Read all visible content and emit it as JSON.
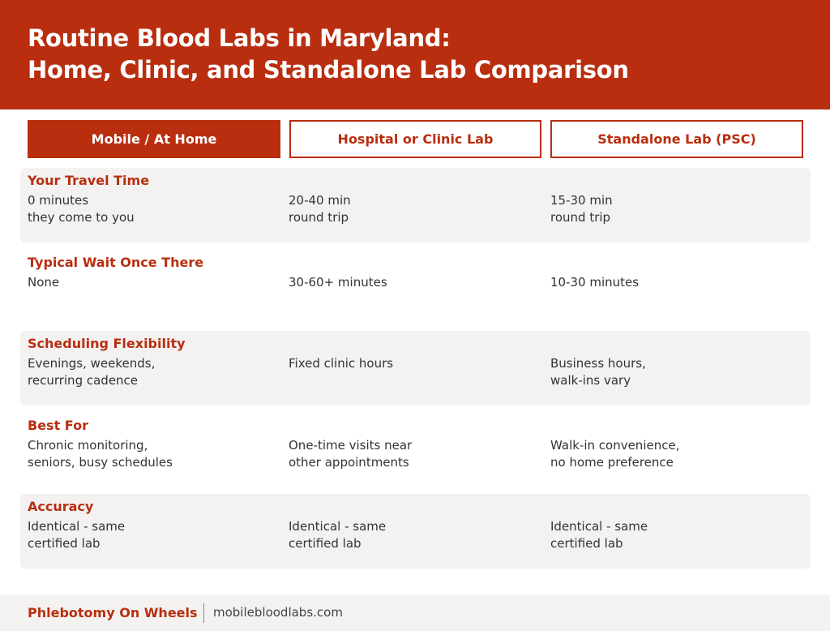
{
  "header": {
    "title_line1": "Routine Blood Labs in Maryland:",
    "title_line2": "Home, Clinic, and Standalone Lab Comparison"
  },
  "columns": [
    "Mobile / At Home",
    "Hospital or Clinic Lab",
    "Standalone Lab (PSC)"
  ],
  "rows": [
    {
      "label": "Your Travel Time",
      "cells": [
        [
          "0 minutes",
          "they come to you"
        ],
        [
          "20-40 min",
          "round trip"
        ],
        [
          "15-30 min",
          "round trip"
        ]
      ]
    },
    {
      "label": "Typical Wait Once There",
      "cells": [
        [
          "None",
          ""
        ],
        [
          "30-60+ minutes",
          ""
        ],
        [
          "10-30 minutes",
          ""
        ]
      ]
    },
    {
      "label": "Scheduling Flexibility",
      "cells": [
        [
          "Evenings, weekends,",
          "recurring cadence"
        ],
        [
          "Fixed clinic hours",
          ""
        ],
        [
          "Business hours,",
          "walk-ins vary"
        ]
      ]
    },
    {
      "label": "Best For",
      "cells": [
        [
          "Chronic monitoring,",
          "seniors, busy schedules"
        ],
        [
          "One-time visits near",
          "other appointments"
        ],
        [
          "Walk-in convenience,",
          "no home preference"
        ]
      ]
    },
    {
      "label": "Accuracy",
      "cells": [
        [
          "Identical - same",
          "certified lab"
        ],
        [
          "Identical - same",
          "certified lab"
        ],
        [
          "Identical - same",
          "certified lab"
        ]
      ]
    }
  ],
  "footer": {
    "brand": "Phlebotomy On Wheels",
    "url": "mobilebloodlabs.com"
  },
  "colors": {
    "accent": "#b92e0f",
    "row_shade": "#f3f2f1"
  }
}
